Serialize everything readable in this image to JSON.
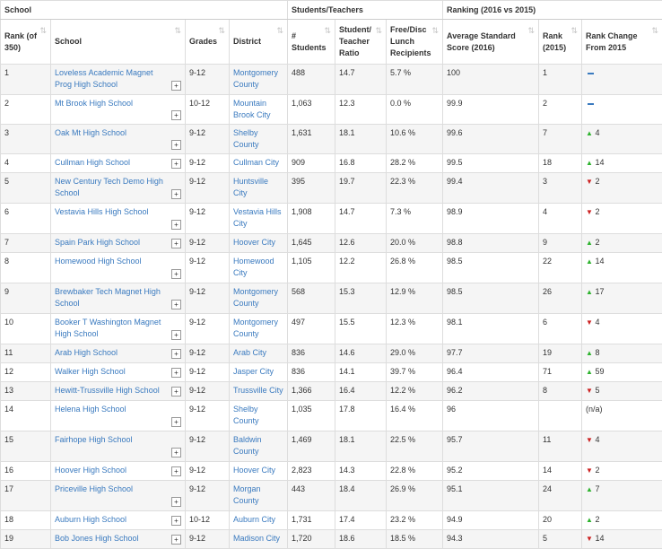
{
  "groups": [
    {
      "label": "School",
      "span": 4
    },
    {
      "label": "Students/Teachers",
      "span": 3
    },
    {
      "label": "Ranking (2016 vs 2015)",
      "span": 3
    }
  ],
  "columns": [
    "Rank (of 350)",
    "School",
    "Grades",
    "District",
    "# Students",
    "Student/ Teacher Ratio",
    "Free/Disc Lunch Recipients",
    "Average Standard Score (2016)",
    "Rank (2015)",
    "Rank Change From 2015"
  ],
  "rows": [
    {
      "rank": "1",
      "school": "Loveless Academic Magnet Prog High School",
      "grades": "9-12",
      "district": "Montgomery County",
      "students": "488",
      "ratio": "14.7",
      "lunch": "5.7 %",
      "score": "100",
      "rank2015": "1",
      "dir": "same",
      "change": ""
    },
    {
      "rank": "2",
      "school": "Mt Brook High School",
      "grades": "10-12",
      "district": "Mountain Brook City",
      "students": "1,063",
      "ratio": "12.3",
      "lunch": "0.0 %",
      "score": "99.9",
      "rank2015": "2",
      "dir": "same",
      "change": ""
    },
    {
      "rank": "3",
      "school": "Oak Mt High School",
      "grades": "9-12",
      "district": "Shelby County",
      "students": "1,631",
      "ratio": "18.1",
      "lunch": "10.6 %",
      "score": "99.6",
      "rank2015": "7",
      "dir": "up",
      "change": "4"
    },
    {
      "rank": "4",
      "school": "Cullman High School",
      "grades": "9-12",
      "district": "Cullman City",
      "students": "909",
      "ratio": "16.8",
      "lunch": "28.2 %",
      "score": "99.5",
      "rank2015": "18",
      "dir": "up",
      "change": "14"
    },
    {
      "rank": "5",
      "school": "New Century Tech Demo High School",
      "grades": "9-12",
      "district": "Huntsville City",
      "students": "395",
      "ratio": "19.7",
      "lunch": "22.3 %",
      "score": "99.4",
      "rank2015": "3",
      "dir": "down",
      "change": "2"
    },
    {
      "rank": "6",
      "school": "Vestavia Hills High School",
      "grades": "9-12",
      "district": "Vestavia Hills City",
      "students": "1,908",
      "ratio": "14.7",
      "lunch": "7.3 %",
      "score": "98.9",
      "rank2015": "4",
      "dir": "down",
      "change": "2"
    },
    {
      "rank": "7",
      "school": "Spain Park High School",
      "grades": "9-12",
      "district": "Hoover City",
      "students": "1,645",
      "ratio": "12.6",
      "lunch": "20.0 %",
      "score": "98.8",
      "rank2015": "9",
      "dir": "up",
      "change": "2"
    },
    {
      "rank": "8",
      "school": "Homewood High School",
      "grades": "9-12",
      "district": "Homewood City",
      "students": "1,105",
      "ratio": "12.2",
      "lunch": "26.8 %",
      "score": "98.5",
      "rank2015": "22",
      "dir": "up",
      "change": "14"
    },
    {
      "rank": "9",
      "school": "Brewbaker Tech Magnet High School",
      "grades": "9-12",
      "district": "Montgomery County",
      "students": "568",
      "ratio": "15.3",
      "lunch": "12.9 %",
      "score": "98.5",
      "rank2015": "26",
      "dir": "up",
      "change": "17"
    },
    {
      "rank": "10",
      "school": "Booker T Washington Magnet High School",
      "grades": "9-12",
      "district": "Montgomery County",
      "students": "497",
      "ratio": "15.5",
      "lunch": "12.3 %",
      "score": "98.1",
      "rank2015": "6",
      "dir": "down",
      "change": "4"
    },
    {
      "rank": "11",
      "school": "Arab High School",
      "grades": "9-12",
      "district": "Arab City",
      "students": "836",
      "ratio": "14.6",
      "lunch": "29.0 %",
      "score": "97.7",
      "rank2015": "19",
      "dir": "up",
      "change": "8"
    },
    {
      "rank": "12",
      "school": "Walker High School",
      "grades": "9-12",
      "district": "Jasper City",
      "students": "836",
      "ratio": "14.1",
      "lunch": "39.7 %",
      "score": "96.4",
      "rank2015": "71",
      "dir": "up",
      "change": "59"
    },
    {
      "rank": "13",
      "school": "Hewitt-Trussville High School",
      "grades": "9-12",
      "district": "Trussville City",
      "students": "1,366",
      "ratio": "16.4",
      "lunch": "12.2 %",
      "score": "96.2",
      "rank2015": "8",
      "dir": "down",
      "change": "5"
    },
    {
      "rank": "14",
      "school": "Helena High School",
      "grades": "9-12",
      "district": "Shelby County",
      "students": "1,035",
      "ratio": "17.8",
      "lunch": "16.4 %",
      "score": "96",
      "rank2015": "",
      "dir": "na",
      "change": "(n/a)"
    },
    {
      "rank": "15",
      "school": "Fairhope High School",
      "grades": "9-12",
      "district": "Baldwin County",
      "students": "1,469",
      "ratio": "18.1",
      "lunch": "22.5 %",
      "score": "95.7",
      "rank2015": "11",
      "dir": "down",
      "change": "4"
    },
    {
      "rank": "16",
      "school": "Hoover High School",
      "grades": "9-12",
      "district": "Hoover City",
      "students": "2,823",
      "ratio": "14.3",
      "lunch": "22.8 %",
      "score": "95.2",
      "rank2015": "14",
      "dir": "down",
      "change": "2"
    },
    {
      "rank": "17",
      "school": "Priceville High School",
      "grades": "9-12",
      "district": "Morgan County",
      "students": "443",
      "ratio": "18.4",
      "lunch": "26.9 %",
      "score": "95.1",
      "rank2015": "24",
      "dir": "up",
      "change": "7"
    },
    {
      "rank": "18",
      "school": "Auburn High School",
      "grades": "10-12",
      "district": "Auburn City",
      "students": "1,731",
      "ratio": "17.4",
      "lunch": "23.2 %",
      "score": "94.9",
      "rank2015": "20",
      "dir": "up",
      "change": "2"
    },
    {
      "rank": "19",
      "school": "Bob Jones High School",
      "grades": "9-12",
      "district": "Madison City",
      "students": "1,720",
      "ratio": "18.6",
      "lunch": "18.5 %",
      "score": "94.3",
      "rank2015": "5",
      "dir": "down",
      "change": "14"
    }
  ],
  "colors": {
    "link": "#3a7abf",
    "up": "#2db22d",
    "down": "#cc2222"
  },
  "icons": {
    "sort": "sort-arrows-icon",
    "expand": "expand-plus-icon",
    "up": "triangle-up-icon",
    "down": "triangle-down-icon",
    "same": "dash-icon"
  }
}
